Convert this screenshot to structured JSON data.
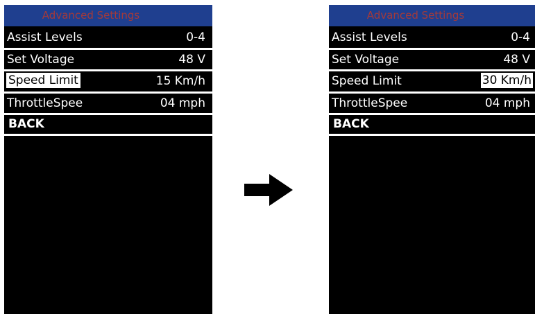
{
  "screens": [
    {
      "title": "Advanced  Settings",
      "rows": [
        {
          "label": "Assist Levels",
          "value": "0-4"
        },
        {
          "label": "Set  Voltage",
          "value": "48 V"
        },
        {
          "label": "Speed  Limit",
          "value": "15 Km/h"
        },
        {
          "label": "ThrottleSpee",
          "value": "04 mph"
        }
      ],
      "back": "BACK"
    },
    {
      "title": "Advanced  Settings",
      "rows": [
        {
          "label": "Assist Levels",
          "value": "0-4"
        },
        {
          "label": "Set  Voltage",
          "value": "48 V"
        },
        {
          "label": "Speed  Limit",
          "value": "30 Km/h"
        },
        {
          "label": "ThrottleSpee",
          "value": "04 mph"
        }
      ],
      "back": "BACK"
    }
  ],
  "arrow_icon": "right-arrow-icon",
  "colors": {
    "title_bar": "#1f3f8f",
    "title_text": "#a43a3a",
    "screen_bg": "#000000",
    "divider": "#ffffff"
  }
}
